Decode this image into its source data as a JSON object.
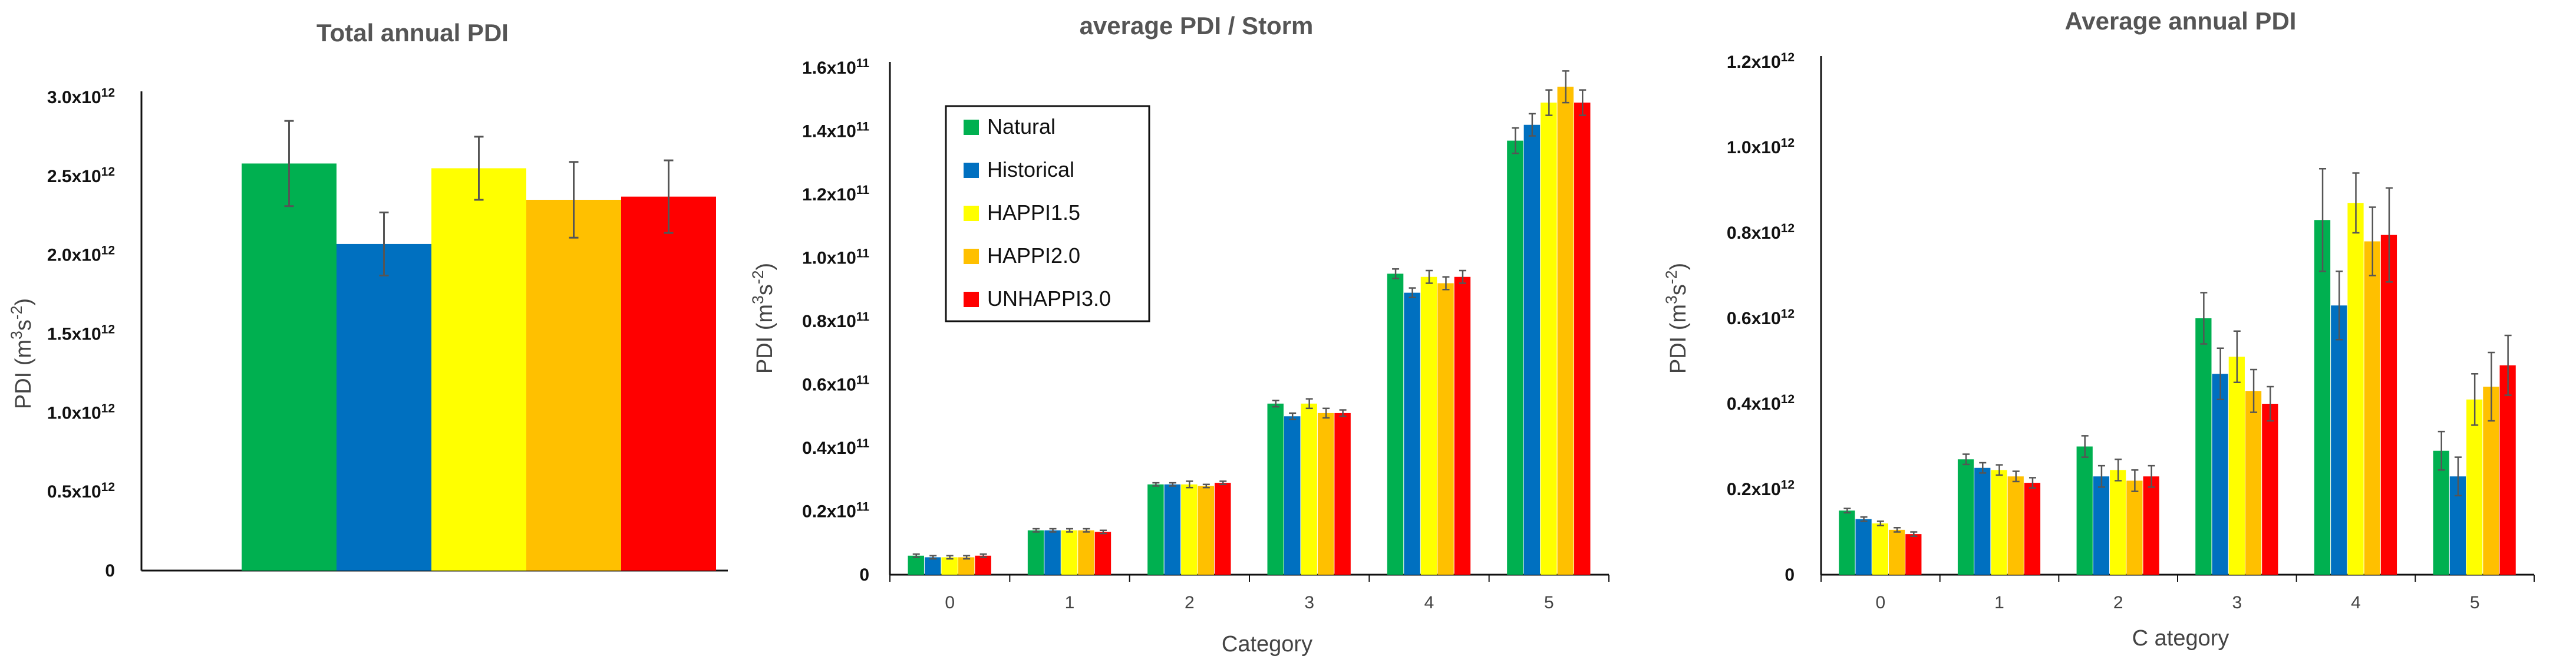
{
  "colors": {
    "Natural": "#00b050",
    "Historical": "#0070c0",
    "HAPPI1.5": "#ffff00",
    "HAPPI2.0": "#ffc000",
    "UNHAPPI3.0": "#ff0000"
  },
  "chart_data": [
    {
      "type": "bar",
      "title": "Total annual PDI",
      "ylabel_base": "PDI (m",
      "ylabel_sup1": "3",
      "ylabel_mid": "s",
      "ylabel_sup2": "-2",
      "ylabel_end": ")",
      "xlabel": "",
      "ylim": [
        0,
        3.0
      ],
      "yticks": [
        {
          "v": 0,
          "label": "0",
          "exp": ""
        },
        {
          "v": 0.5,
          "label": "0.5x10",
          "exp": "12"
        },
        {
          "v": 1.0,
          "label": "1.0x10",
          "exp": "12"
        },
        {
          "v": 1.5,
          "label": "1.5x10",
          "exp": "12"
        },
        {
          "v": 2.0,
          "label": "2.0x10",
          "exp": "12"
        },
        {
          "v": 2.5,
          "label": "2.5x10",
          "exp": "12"
        },
        {
          "v": 3.0,
          "label": "3.0x10",
          "exp": "12"
        }
      ],
      "categories": [
        ""
      ],
      "series": [
        {
          "name": "Natural",
          "values": [
            2.58
          ],
          "err": [
            0.27
          ]
        },
        {
          "name": "Historical",
          "values": [
            2.07
          ],
          "err": [
            0.2
          ]
        },
        {
          "name": "HAPPI1.5",
          "values": [
            2.55
          ],
          "err": [
            0.2
          ]
        },
        {
          "name": "HAPPI2.0",
          "values": [
            2.35
          ],
          "err": [
            0.24
          ]
        },
        {
          "name": "UNHAPPI3.0",
          "values": [
            2.37
          ],
          "err": [
            0.23
          ]
        }
      ]
    },
    {
      "type": "bar",
      "title": "average PDI / Storm",
      "ylabel_base": "PDI (m",
      "ylabel_sup1": "3",
      "ylabel_mid": "s",
      "ylabel_sup2": "-2",
      "ylabel_end": ")",
      "xlabel": "Category",
      "ylim": [
        0,
        1.6
      ],
      "yticks": [
        {
          "v": 0,
          "label": "0",
          "exp": ""
        },
        {
          "v": 0.2,
          "label": "0.2x10",
          "exp": "11"
        },
        {
          "v": 0.4,
          "label": "0.4x10",
          "exp": "11"
        },
        {
          "v": 0.6,
          "label": "0.6x10",
          "exp": "11"
        },
        {
          "v": 0.8,
          "label": "0.8x10",
          "exp": "11"
        },
        {
          "v": 1.0,
          "label": "1.0x10",
          "exp": "11"
        },
        {
          "v": 1.2,
          "label": "1.2x10",
          "exp": "11"
        },
        {
          "v": 1.4,
          "label": "1.4x10",
          "exp": "11"
        },
        {
          "v": 1.6,
          "label": "1.6x10",
          "exp": "11"
        }
      ],
      "categories": [
        "0",
        "1",
        "2",
        "3",
        "4",
        "5"
      ],
      "series": [
        {
          "name": "Natural",
          "values": [
            0.06,
            0.14,
            0.285,
            0.54,
            0.95,
            1.37
          ],
          "err": [
            0.005,
            0.005,
            0.005,
            0.01,
            0.015,
            0.04
          ]
        },
        {
          "name": "Historical",
          "values": [
            0.055,
            0.14,
            0.285,
            0.5,
            0.89,
            1.42
          ],
          "err": [
            0.005,
            0.005,
            0.005,
            0.01,
            0.015,
            0.035
          ]
        },
        {
          "name": "HAPPI1.5",
          "values": [
            0.055,
            0.14,
            0.285,
            0.54,
            0.94,
            1.49
          ],
          "err": [
            0.005,
            0.005,
            0.01,
            0.015,
            0.02,
            0.04
          ]
        },
        {
          "name": "HAPPI2.0",
          "values": [
            0.055,
            0.14,
            0.28,
            0.51,
            0.92,
            1.54
          ],
          "err": [
            0.005,
            0.005,
            0.005,
            0.015,
            0.02,
            0.05
          ]
        },
        {
          "name": "UNHAPPI3.0",
          "values": [
            0.06,
            0.135,
            0.29,
            0.51,
            0.94,
            1.49
          ],
          "err": [
            0.005,
            0.005,
            0.005,
            0.01,
            0.02,
            0.04
          ]
        }
      ],
      "legend": [
        "Natural",
        "Historical",
        "HAPPI1.5",
        "HAPPI2.0",
        "UNHAPPI3.0"
      ]
    },
    {
      "type": "bar",
      "title": "Average annual PDI",
      "ylabel_base": "PDI (m",
      "ylabel_sup1": "3",
      "ylabel_mid": "s",
      "ylabel_sup2": "-2",
      "ylabel_end": ")",
      "xlabel": "C ategory",
      "ylim": [
        0,
        1.2
      ],
      "yticks": [
        {
          "v": 0,
          "label": "0",
          "exp": ""
        },
        {
          "v": 0.2,
          "label": "0.2x10",
          "exp": "12"
        },
        {
          "v": 0.4,
          "label": "0.4x10",
          "exp": "12"
        },
        {
          "v": 0.6,
          "label": "0.6x10",
          "exp": "12"
        },
        {
          "v": 0.8,
          "label": "0.8x10",
          "exp": "12"
        },
        {
          "v": 1.0,
          "label": "1.0x10",
          "exp": "12"
        },
        {
          "v": 1.2,
          "label": "1.2x10",
          "exp": "12"
        }
      ],
      "categories": [
        "0",
        "1",
        "2",
        "3",
        "4",
        "5"
      ],
      "series": [
        {
          "name": "Natural",
          "values": [
            0.15,
            0.27,
            0.3,
            0.6,
            0.83,
            0.29
          ],
          "err": [
            0.005,
            0.012,
            0.025,
            0.06,
            0.12,
            0.045
          ]
        },
        {
          "name": "Historical",
          "values": [
            0.13,
            0.25,
            0.23,
            0.47,
            0.63,
            0.23
          ],
          "err": [
            0.005,
            0.012,
            0.025,
            0.06,
            0.08,
            0.045
          ]
        },
        {
          "name": "HAPPI1.5",
          "values": [
            0.12,
            0.245,
            0.245,
            0.51,
            0.87,
            0.41
          ],
          "err": [
            0.005,
            0.012,
            0.025,
            0.06,
            0.07,
            0.06
          ]
        },
        {
          "name": "HAPPI2.0",
          "values": [
            0.105,
            0.23,
            0.22,
            0.43,
            0.78,
            0.44
          ],
          "err": [
            0.005,
            0.012,
            0.025,
            0.05,
            0.08,
            0.08
          ]
        },
        {
          "name": "UNHAPPI3.0",
          "values": [
            0.095,
            0.215,
            0.23,
            0.4,
            0.795,
            0.49
          ],
          "err": [
            0.005,
            0.012,
            0.025,
            0.04,
            0.11,
            0.07
          ]
        }
      ]
    }
  ]
}
